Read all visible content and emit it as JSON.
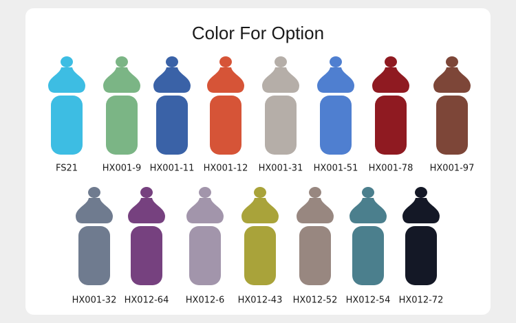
{
  "title": "Color For Option",
  "options": [
    {
      "label": "FS21",
      "color": "#3dbde3"
    },
    {
      "label": "HX001-9",
      "color": "#7bb585"
    },
    {
      "label": "HX001-11",
      "color": "#3a62a7"
    },
    {
      "label": "HX001-12",
      "color": "#d65437"
    },
    {
      "label": "HX001-31",
      "color": "#b5aea8"
    },
    {
      "label": "HX001-51",
      "color": "#4f7fd0"
    },
    {
      "label": "HX001-78",
      "color": "#8f1a21"
    },
    {
      "label": "HX001-97",
      "color": "#7d4638"
    },
    {
      "label": "HX001-32",
      "color": "#6f7b8f"
    },
    {
      "label": "HX012-64",
      "color": "#76417f"
    },
    {
      "label": "HX012-6",
      "color": "#a295ab"
    },
    {
      "label": "HX012-43",
      "color": "#a9a33a"
    },
    {
      "label": "HX012-52",
      "color": "#988780"
    },
    {
      "label": "HX012-54",
      "color": "#4b7f8d"
    },
    {
      "label": "HX012-72",
      "color": "#141826"
    }
  ]
}
